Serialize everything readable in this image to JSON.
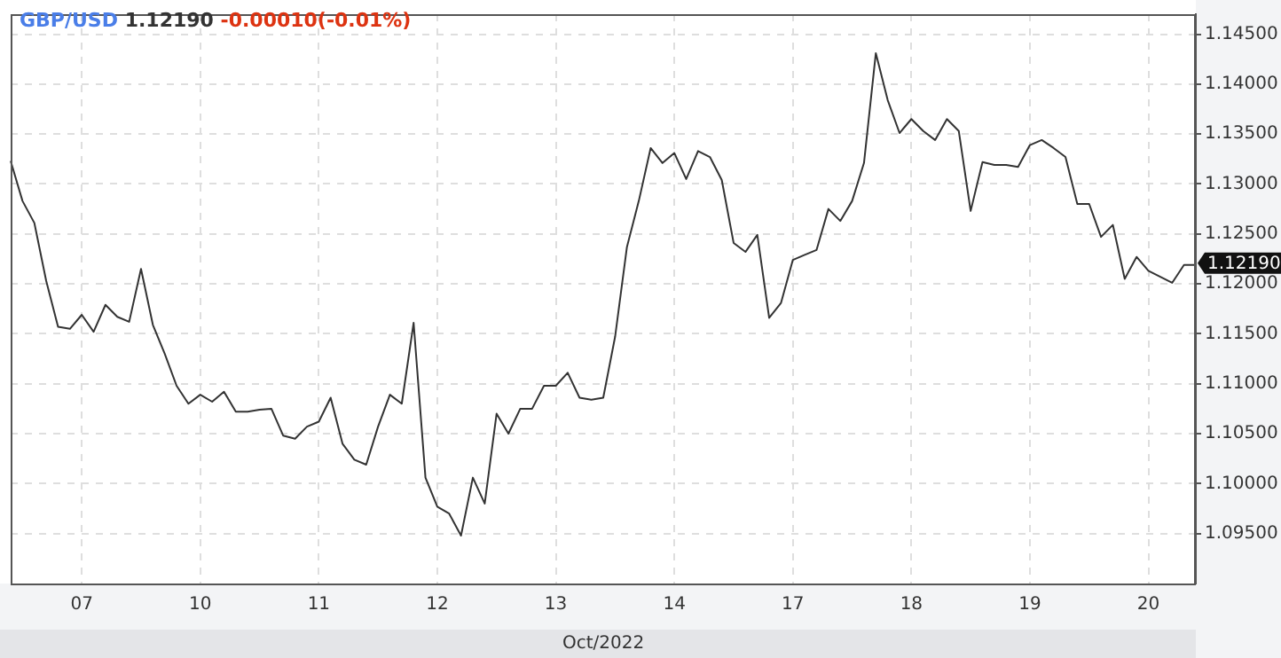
{
  "chart_data": {
    "type": "line",
    "title": "GBP/USD",
    "xlabel": "Oct/2022",
    "categories": [
      null,
      null,
      null,
      null,
      null,
      null,
      "07",
      null,
      null,
      null,
      null,
      null,
      null,
      null,
      null,
      null,
      "10",
      null,
      null,
      null,
      null,
      null,
      null,
      null,
      null,
      null,
      "11",
      null,
      null,
      null,
      null,
      null,
      null,
      null,
      null,
      null,
      "12",
      null,
      null,
      null,
      null,
      null,
      null,
      null,
      null,
      null,
      "13",
      null,
      null,
      null,
      null,
      null,
      null,
      null,
      null,
      null,
      "14",
      null,
      null,
      null,
      null,
      null,
      null,
      null,
      null,
      null,
      "17",
      null,
      null,
      null,
      null,
      null,
      null,
      null,
      null,
      null,
      "18",
      null,
      null,
      null,
      null,
      null,
      null,
      null,
      null,
      null,
      "19",
      null,
      null,
      null,
      null,
      null,
      null,
      null,
      null,
      null,
      "20",
      null,
      null,
      null,
      null
    ],
    "series": [
      {
        "color": "#333333",
        "values": [
          1.1323,
          1.1283,
          1.1261,
          1.1203,
          1.1157,
          1.1155,
          1.1169,
          1.1152,
          1.1179,
          1.1167,
          1.1162,
          1.1215,
          1.1159,
          1.113,
          1.1098,
          1.108,
          1.1089,
          1.1082,
          1.1092,
          1.1072,
          1.1072,
          1.1074,
          1.1075,
          1.1048,
          1.1045,
          1.1057,
          1.1062,
          1.1086,
          1.104,
          1.1024,
          1.1019,
          1.1057,
          1.1089,
          1.108,
          1.1161,
          1.1006,
          1.0977,
          1.097,
          1.0948,
          1.1006,
          1.098,
          1.107,
          1.105,
          1.1075,
          1.1075,
          1.1098,
          1.1098,
          1.1111,
          1.1086,
          1.1084,
          1.1086,
          1.1147,
          1.1237,
          1.1283,
          1.1336,
          1.1321,
          1.1331,
          1.1305,
          1.1333,
          1.1327,
          1.1304,
          1.1241,
          1.1232,
          1.1249,
          1.1166,
          1.1181,
          1.1224,
          1.1229,
          1.1234,
          1.1275,
          1.1263,
          1.1283,
          1.1321,
          1.1431,
          1.1384,
          1.1351,
          1.1365,
          1.1353,
          1.1344,
          1.1365,
          1.1353,
          1.1273,
          1.1322,
          1.1319,
          1.1319,
          1.1317,
          1.1339,
          1.1344,
          1.1336,
          1.1327,
          1.128,
          1.128,
          1.1247,
          1.1259,
          1.1205,
          1.1227,
          1.1213,
          1.1207,
          1.1201,
          1.1219,
          1.1219
        ]
      }
    ],
    "ylim": [
      1.09,
      1.147
    ],
    "yticks": [
      {
        "value": 1.095,
        "label": "1.09500"
      },
      {
        "value": 1.1,
        "label": "1.10000"
      },
      {
        "value": 1.105,
        "label": "1.10500"
      },
      {
        "value": 1.11,
        "label": "1.11000"
      },
      {
        "value": 1.115,
        "label": "1.11500"
      },
      {
        "value": 1.12,
        "label": "1.12000"
      },
      {
        "value": 1.125,
        "label": "1.12500"
      },
      {
        "value": 1.13,
        "label": "1.13000"
      },
      {
        "value": 1.135,
        "label": "1.13500"
      },
      {
        "value": 1.14,
        "label": "1.14000"
      },
      {
        "value": 1.145,
        "label": "1.14500"
      }
    ],
    "annotations": [
      "1.12190",
      "-0.00010(-0.01%)",
      "1.12190"
    ],
    "grid": true,
    "legend": false,
    "marker": "none",
    "line_style": "solid"
  }
}
